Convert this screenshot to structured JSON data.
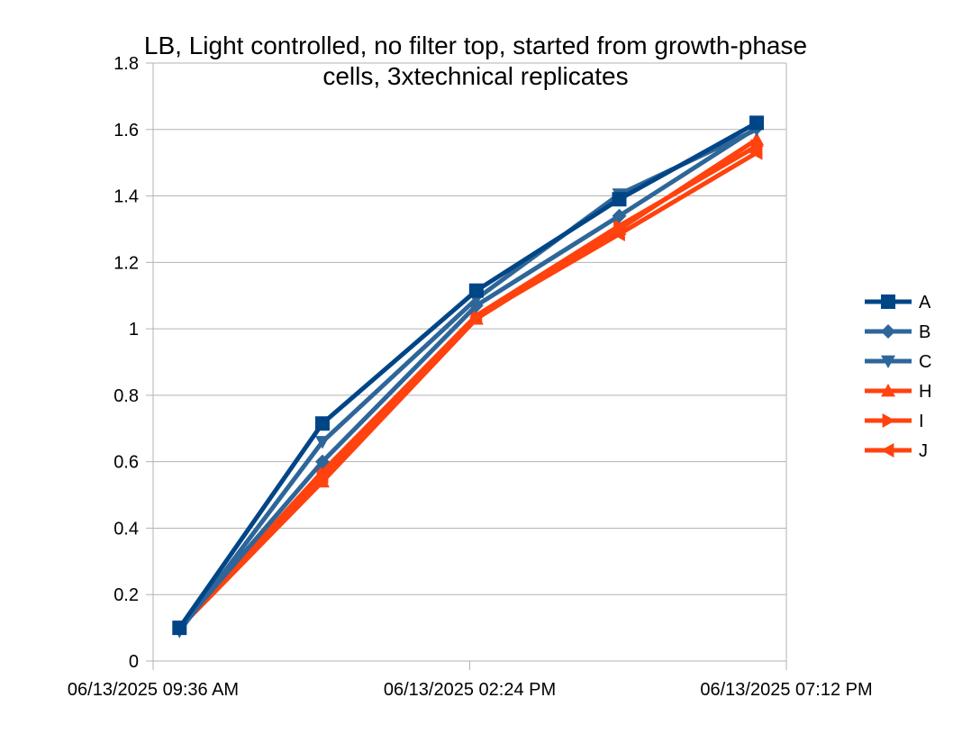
{
  "chart_data": {
    "type": "line",
    "title_lines": [
      "LB, Light controlled, no filter top, started from growth-phase",
      "cells, 3xtechnical replicates"
    ],
    "xlabel": "",
    "ylabel": "",
    "x_ticks": [
      "06/13/2025 09:36 AM",
      "06/13/2025 02:24 PM",
      "06/13/2025 07:12 PM"
    ],
    "x_range": [
      "06/13/2025 09:36 AM",
      "06/13/2025 07:12 PM"
    ],
    "x": [
      "06/13/2025 10:00 AM",
      "06/13/2025 12:10 PM",
      "06/13/2025 02:30 PM",
      "06/13/2025 04:40 PM",
      "06/13/2025 06:45 PM"
    ],
    "ylim": [
      0,
      1.8
    ],
    "y_ticks": [
      "0",
      "0.2",
      "0.4",
      "0.6",
      "0.8",
      "1",
      "1.2",
      "1.4",
      "1.6",
      "1.8"
    ],
    "grid": "horizontal",
    "legend_position": "right",
    "series": [
      {
        "name": "A",
        "marker": "square",
        "color": "#004586",
        "values": [
          0.1,
          0.715,
          1.115,
          1.39,
          1.62
        ]
      },
      {
        "name": "B",
        "marker": "diamond",
        "color": "#2e6699",
        "values": [
          0.1,
          0.6,
          1.07,
          1.34,
          1.605
        ]
      },
      {
        "name": "C",
        "marker": "triangle-down",
        "color": "#2e6699",
        "values": [
          0.09,
          0.66,
          1.09,
          1.405,
          1.6
        ]
      },
      {
        "name": "H",
        "marker": "triangle-up",
        "color": "#ff420e",
        "values": [
          0.1,
          0.54,
          1.03,
          1.3,
          1.57
        ]
      },
      {
        "name": "I",
        "marker": "triangle-right",
        "color": "#ff420e",
        "values": [
          0.1,
          0.57,
          1.04,
          1.31,
          1.55
        ]
      },
      {
        "name": "J",
        "marker": "triangle-left",
        "color": "#ff420e",
        "values": [
          0.1,
          0.555,
          1.035,
          1.285,
          1.53
        ]
      }
    ]
  }
}
